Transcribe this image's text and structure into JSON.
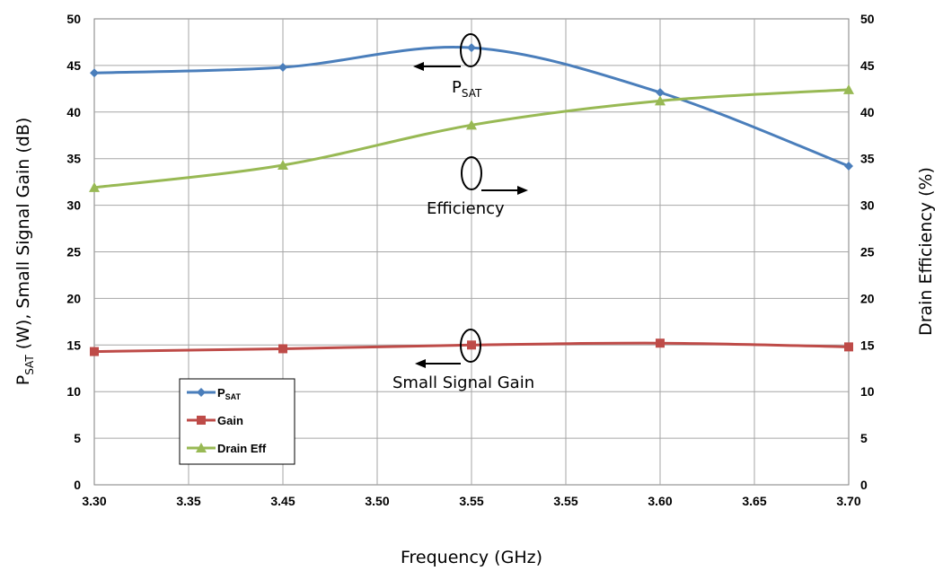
{
  "chart_data": {
    "type": "line",
    "x": [
      3.3,
      3.45,
      3.55,
      3.6,
      3.7
    ],
    "x_tick_labels": [
      "3.30",
      "3.35",
      "3.45",
      "3.50",
      "3.55",
      "3.55",
      "3.60",
      "3.65",
      "3.70"
    ],
    "y_left_ticks": [
      "0",
      "5",
      "10",
      "15",
      "20",
      "25",
      "30",
      "35",
      "40",
      "45",
      "50"
    ],
    "y_right_ticks": [
      "0",
      "5",
      "10",
      "15",
      "20",
      "25",
      "30",
      "35",
      "40",
      "45",
      "50"
    ],
    "ylim_left": [
      0,
      50
    ],
    "ylim_right": [
      0,
      50
    ],
    "xlabel": "Frequency (GHz)",
    "ylabel_left_main": "P",
    "ylabel_left_sub": "SAT",
    "ylabel_left_rest": " (W), Small Signal Gain (dB)",
    "ylabel_right": "Drain Efficiency (%)",
    "grid": true,
    "legend_position": "bottom-left",
    "series": [
      {
        "name": "P",
        "name_sub": "SAT",
        "axis": "left",
        "color": "#4a7ebb",
        "marker": "diamond",
        "values": [
          44.2,
          44.8,
          46.9,
          42.1,
          34.2
        ]
      },
      {
        "name": "Gain",
        "axis": "left",
        "color": "#be4b48",
        "marker": "square",
        "values": [
          14.3,
          14.6,
          15.0,
          15.2,
          14.8
        ]
      },
      {
        "name": "Drain Eff",
        "axis": "right",
        "color": "#98b954",
        "marker": "triangle",
        "values": [
          31.9,
          34.3,
          38.6,
          41.2,
          42.4
        ]
      }
    ],
    "annotations": {
      "psat_main": "P",
      "psat_sub": "SAT",
      "efficiency": "Efficiency",
      "gain": "Small Signal Gain"
    }
  }
}
